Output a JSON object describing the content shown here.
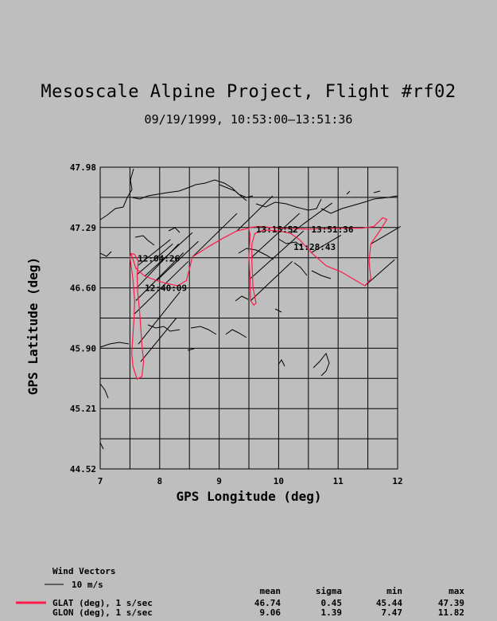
{
  "header": {
    "title": "Mesoscale Alpine Project, Flight #rf02",
    "subtitle": "09/19/1999, 10:53:00–13:51:36"
  },
  "chart_data": {
    "type": "line",
    "title": "Mesoscale Alpine Project, Flight #rf02",
    "xlabel": "GPS Longitude (deg)",
    "ylabel": "GPS Latitude (deg)",
    "xlim": [
      7,
      12
    ],
    "ylim": [
      44.52,
      47.98
    ],
    "x_ticks": [
      "7",
      "8",
      "9",
      "10",
      "11",
      "12"
    ],
    "y_ticks": [
      "44.52",
      "45.21",
      "45.90",
      "46.60",
      "47.29",
      "47.98"
    ],
    "grid": true,
    "series": [
      {
        "name": "GLAT (deg), 1 s/sec",
        "color": "#ff1a4a",
        "points": [
          [
            7.52,
            46.99
          ],
          [
            7.5,
            46.95
          ],
          [
            7.52,
            46.85
          ],
          [
            7.55,
            46.7
          ],
          [
            7.58,
            46.45
          ],
          [
            7.57,
            46.25
          ],
          [
            7.55,
            46.05
          ],
          [
            7.53,
            45.85
          ],
          [
            7.55,
            45.7
          ],
          [
            7.62,
            45.55
          ],
          [
            7.7,
            45.58
          ],
          [
            7.73,
            45.75
          ],
          [
            7.7,
            45.95
          ],
          [
            7.68,
            46.15
          ],
          [
            7.66,
            46.35
          ],
          [
            7.63,
            46.55
          ],
          [
            7.62,
            46.75
          ],
          [
            7.64,
            46.9
          ],
          [
            7.58,
            46.98
          ],
          [
            7.52,
            46.99
          ],
          [
            7.6,
            46.82
          ],
          [
            7.75,
            46.73
          ],
          [
            7.95,
            46.68
          ],
          [
            8.1,
            46.65
          ],
          [
            8.3,
            46.62
          ],
          [
            8.45,
            46.68
          ],
          [
            8.55,
            46.95
          ],
          [
            8.8,
            47.06
          ],
          [
            9.05,
            47.16
          ],
          [
            9.3,
            47.25
          ],
          [
            9.5,
            47.28
          ],
          [
            9.52,
            47.2
          ],
          [
            9.5,
            46.95
          ],
          [
            9.52,
            46.7
          ],
          [
            9.53,
            46.45
          ],
          [
            9.58,
            46.4
          ],
          [
            9.62,
            46.42
          ],
          [
            9.57,
            46.6
          ],
          [
            9.55,
            46.9
          ],
          [
            9.55,
            47.1
          ],
          [
            9.6,
            47.22
          ],
          [
            9.75,
            47.26
          ],
          [
            10.0,
            47.25
          ],
          [
            10.2,
            47.22
          ],
          [
            10.35,
            47.15
          ],
          [
            10.55,
            47.0
          ],
          [
            10.8,
            46.85
          ],
          [
            11.05,
            46.78
          ],
          [
            11.3,
            46.68
          ],
          [
            11.45,
            46.62
          ],
          [
            11.55,
            46.7
          ],
          [
            11.52,
            46.9
          ],
          [
            11.55,
            47.1
          ],
          [
            11.7,
            47.25
          ],
          [
            11.82,
            47.38
          ],
          [
            11.75,
            47.4
          ],
          [
            11.6,
            47.3
          ],
          [
            11.4,
            47.28
          ],
          [
            11.0,
            47.28
          ],
          [
            10.5,
            47.27
          ],
          [
            10.0,
            47.28
          ],
          [
            9.7,
            47.3
          ],
          [
            9.5,
            47.29
          ]
        ]
      },
      {
        "name": "GLON (deg), 1 s/sec",
        "color": "#000000",
        "points": []
      }
    ],
    "wind_vectors": {
      "label": "Wind Vectors",
      "scale_label": "10 m/s",
      "vectors": [
        [
          7.58,
          46.3,
          0.9,
          0.6
        ],
        [
          7.6,
          46.45,
          0.8,
          0.55
        ],
        [
          7.62,
          46.6,
          0.7,
          0.5
        ],
        [
          7.62,
          46.75,
          0.6,
          0.35
        ],
        [
          7.63,
          46.85,
          0.55,
          0.3
        ],
        [
          7.64,
          45.95,
          0.7,
          0.6
        ],
        [
          7.68,
          45.75,
          0.6,
          0.5
        ],
        [
          7.75,
          46.73,
          0.8,
          0.5
        ],
        [
          7.95,
          46.68,
          0.7,
          0.45
        ],
        [
          8.55,
          46.95,
          0.75,
          0.5
        ],
        [
          9.3,
          47.25,
          0.6,
          0.4
        ],
        [
          9.52,
          46.7,
          0.9,
          0.55
        ],
        [
          9.53,
          46.45,
          0.7,
          0.45
        ],
        [
          9.55,
          46.95,
          0.8,
          0.5
        ],
        [
          10.2,
          47.22,
          0.7,
          0.35
        ],
        [
          10.55,
          47.0,
          0.5,
          0.2
        ],
        [
          11.45,
          46.62,
          0.5,
          0.3
        ],
        [
          11.55,
          47.1,
          0.5,
          0.2
        ]
      ]
    },
    "annotations": [
      {
        "text": "12:04:26",
        "x": 7.63,
        "y": 46.9
      },
      {
        "text": "12:40:09",
        "x": 7.75,
        "y": 46.56
      },
      {
        "text": "13:15:52",
        "x": 9.62,
        "y": 47.23
      },
      {
        "text": "13:51:36",
        "x": 10.55,
        "y": 47.23
      },
      {
        "text": "11:28:43",
        "x": 10.25,
        "y": 47.03
      }
    ],
    "stats": {
      "headers": [
        "mean",
        "sigma",
        "min",
        "max"
      ],
      "rows": [
        {
          "name": "GLAT (deg), 1 s/sec",
          "values": [
            "46.74",
            "0.45",
            "45.44",
            "47.39"
          ]
        },
        {
          "name": "GLON (deg), 1 s/sec",
          "values": [
            "9.06",
            "1.39",
            "7.47",
            "11.82"
          ]
        }
      ]
    }
  }
}
